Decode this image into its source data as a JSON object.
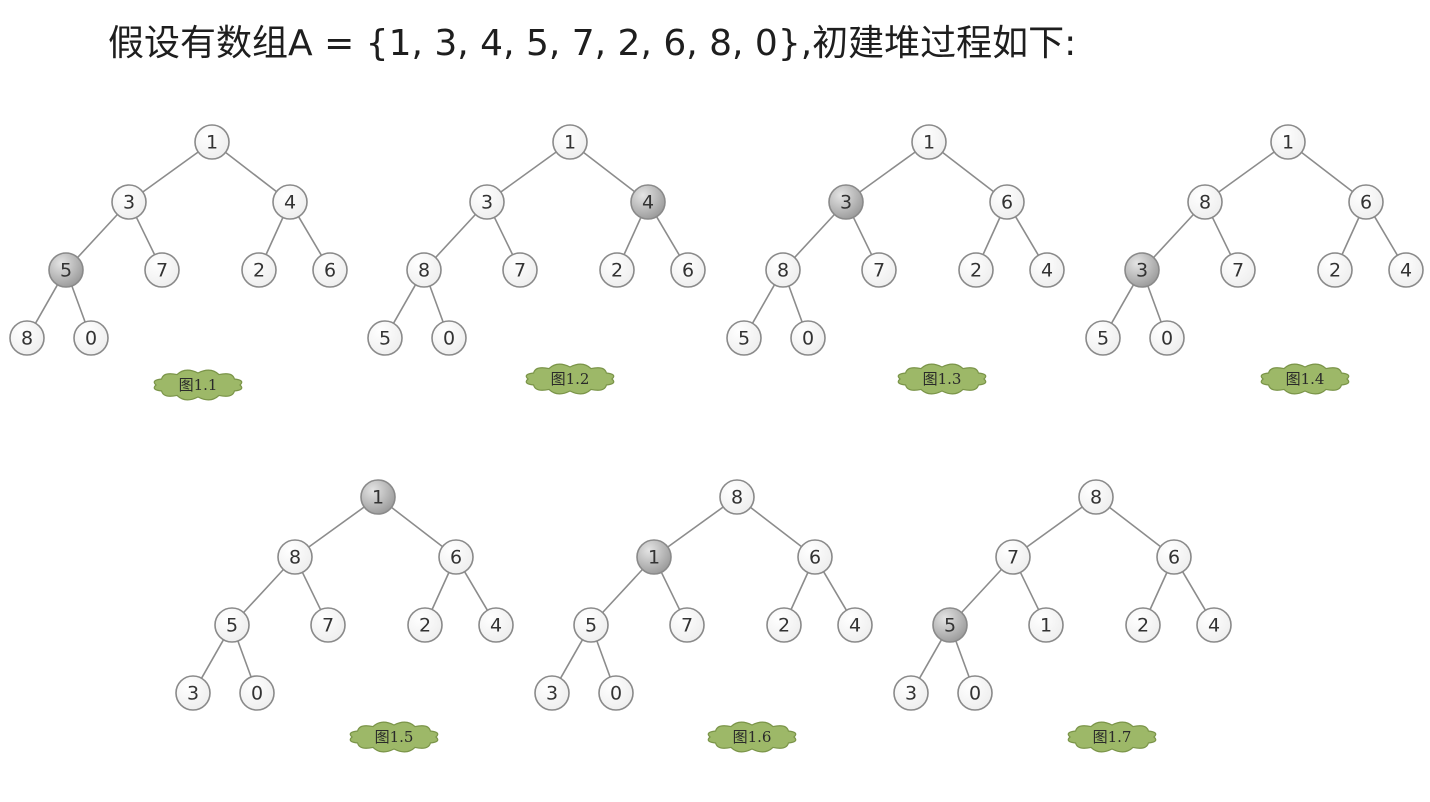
{
  "title": "假设有数组A = {1, 3, 4, 5, 7, 2, 6, 8, 0},初建堆过程如下:",
  "colors": {
    "edge": "#8c8c8c",
    "node_stroke": "#8a8a8a",
    "node_fill_light": "#ffffff",
    "node_fill_dark": "#f0f0f0",
    "highlight_light": "#e2e2e2",
    "highlight_dark": "#9c9c9c",
    "caption_fill": "#9db868",
    "caption_stroke": "#7a9448"
  },
  "trees": [
    {
      "caption": "图1.1",
      "values": [
        "1",
        "3",
        "4",
        "5",
        "7",
        "2",
        "6",
        "8",
        "0"
      ],
      "highlight": 3
    },
    {
      "caption": "图1.2",
      "values": [
        "1",
        "3",
        "4",
        "8",
        "7",
        "2",
        "6",
        "5",
        "0"
      ],
      "highlight": 2
    },
    {
      "caption": "图1.3",
      "values": [
        "1",
        "3",
        "6",
        "8",
        "7",
        "2",
        "4",
        "5",
        "0"
      ],
      "highlight": 1
    },
    {
      "caption": "图1.4",
      "values": [
        "1",
        "8",
        "6",
        "3",
        "7",
        "2",
        "4",
        "5",
        "0"
      ],
      "highlight": 3
    },
    {
      "caption": "图1.5",
      "values": [
        "1",
        "8",
        "6",
        "5",
        "7",
        "2",
        "4",
        "3",
        "0"
      ],
      "highlight": 0
    },
    {
      "caption": "图1.6",
      "values": [
        "8",
        "1",
        "6",
        "5",
        "7",
        "2",
        "4",
        "3",
        "0"
      ],
      "highlight": 1
    },
    {
      "caption": "图1.7",
      "values": [
        "8",
        "7",
        "6",
        "5",
        "1",
        "2",
        "4",
        "3",
        "0"
      ],
      "highlight": 3
    }
  ]
}
